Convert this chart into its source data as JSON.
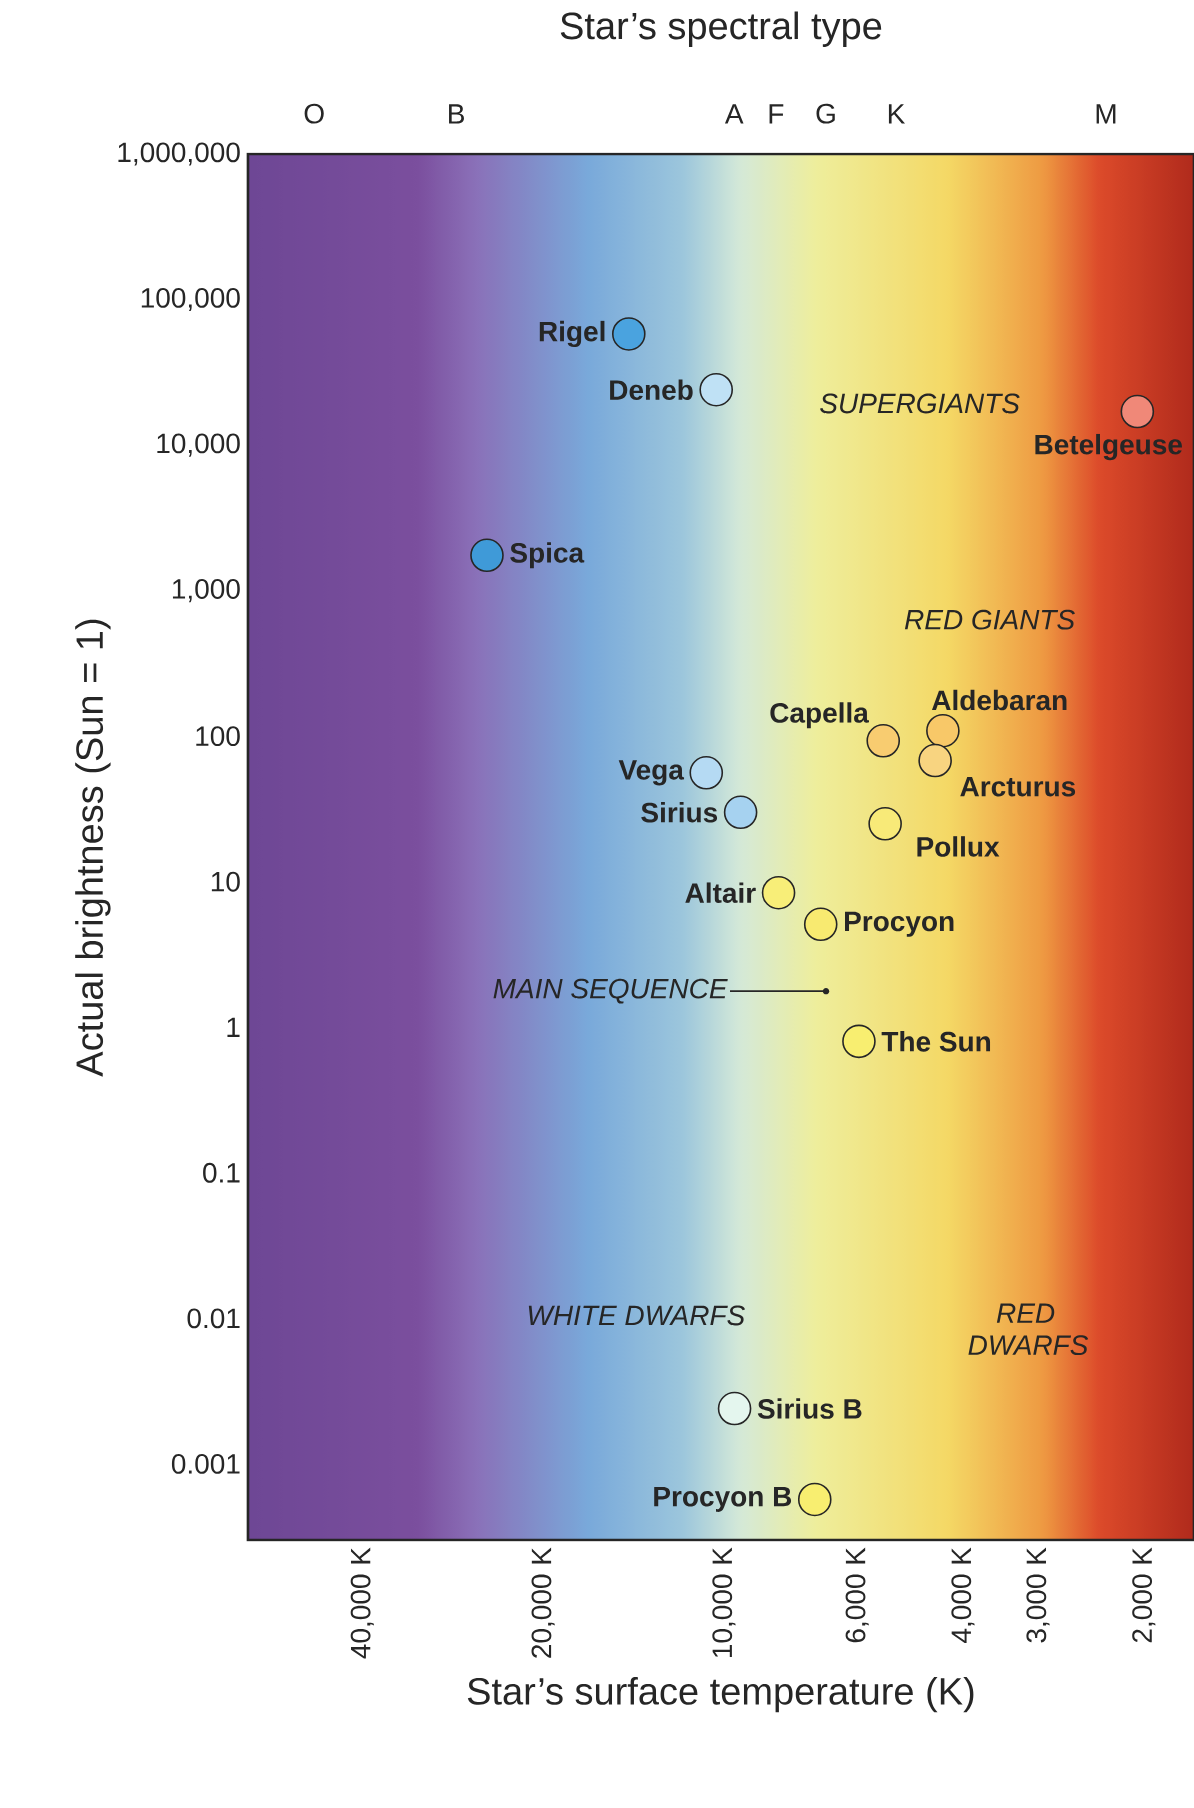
{
  "chart_data": {
    "type": "scatter",
    "log": "xy",
    "x2label": "Star’s spectral type",
    "xlabel": "Star’s surface temperature (K)",
    "ylabel": "Actual brightness (Sun = 1)",
    "xlim": [
      62000,
      1650
    ],
    "xticks": [
      {
        "value": 40000,
        "label": "40,000 K"
      },
      {
        "value": 20000,
        "label": "20,000 K"
      },
      {
        "value": 10000,
        "label": "10,000 K"
      },
      {
        "value": 6000,
        "label": "6,000 K"
      },
      {
        "value": 4000,
        "label": "4,000 K"
      },
      {
        "value": 3000,
        "label": "3,000 K"
      },
      {
        "value": 2000,
        "label": "2,000 K"
      }
    ],
    "ylim": [
      0.0003,
      1000000
    ],
    "yticks": [
      {
        "value": 1000000,
        "label": "1,000,000"
      },
      {
        "value": 100000,
        "label": "100,000"
      },
      {
        "value": 10000,
        "label": "10,000"
      },
      {
        "value": 1000,
        "label": "1,000"
      },
      100,
      10,
      1,
      0.1,
      0.01,
      0.001
    ],
    "series": [
      {
        "name": "Rigel",
        "color": "#4aa3df",
        "x": [
          14400
        ],
        "values": [
          58000
        ]
      },
      {
        "name": "Deneb",
        "color": "#bfe1f5",
        "x": [
          10300
        ],
        "values": [
          24000
        ]
      },
      {
        "name": "Betelgeuse",
        "color": "#f08878",
        "x": [
          2050
        ],
        "values": [
          17000
        ]
      },
      {
        "name": "Spica",
        "color": "#3f9ad8",
        "x": [
          24800
        ],
        "values": [
          1750
        ]
      },
      {
        "name": "Capella",
        "color": "#f8cc70",
        "x": [
          5430
        ],
        "values": [
          93
        ]
      },
      {
        "name": "Aldebaran",
        "color": "#f8c868",
        "x": [
          4320
        ],
        "values": [
          109
        ]
      },
      {
        "name": "Arcturus",
        "color": "#f8d480",
        "x": [
          4450
        ],
        "values": [
          68
        ]
      },
      {
        "name": "Vega",
        "color": "#b5daf3",
        "x": [
          10700
        ],
        "values": [
          56
        ]
      },
      {
        "name": "Sirius",
        "color": "#a6d2f0",
        "x": [
          9380
        ],
        "values": [
          30
        ]
      },
      {
        "name": "Pollux",
        "color": "#f8ea78",
        "x": [
          5390
        ],
        "values": [
          25
        ]
      },
      {
        "name": "Altair",
        "color": "#f8ee78",
        "x": [
          8110
        ],
        "values": [
          8.4
        ]
      },
      {
        "name": "Procyon",
        "color": "#f8ea70",
        "x": [
          6900
        ],
        "values": [
          5.1
        ]
      },
      {
        "name": "The Sun",
        "color": "#f8ee70",
        "x": [
          5960
        ],
        "values": [
          0.8
        ]
      },
      {
        "name": "Sirius B",
        "color": "#e4f6ee",
        "x": [
          9600
        ],
        "values": [
          0.0024
        ]
      },
      {
        "name": "Procyon B",
        "color": "#f8ee70",
        "x": [
          7060
        ],
        "values": [
          0.00057
        ]
      }
    ],
    "annotations": [
      "O",
      "B",
      "A",
      "F",
      "G",
      "K",
      "M",
      "SUPERGIANTS",
      "RED GIANTS",
      "MAIN SEQUENCE",
      "WHITE DWARFS",
      "RED DWARFS"
    ]
  }
}
